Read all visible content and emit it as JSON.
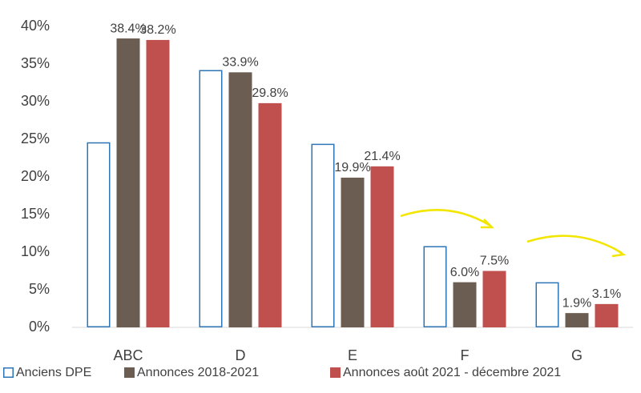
{
  "chart_data": {
    "type": "bar",
    "categories": [
      "ABC",
      "D",
      "E",
      "F",
      "G"
    ],
    "series": [
      {
        "name": "Anciens DPE",
        "color": "#2e75b6",
        "outline": true,
        "values": [
          24.6,
          34.2,
          24.4,
          10.8,
          6.0
        ]
      },
      {
        "name": "Annonces 2018-2021",
        "color": "#6b5d52",
        "values": [
          38.4,
          33.9,
          19.9,
          6.0,
          1.9
        ],
        "value_labels": [
          "38.4%",
          "33.9%",
          "19.9%",
          "6.0%",
          "1.9%"
        ]
      },
      {
        "name": "Annonces août 2021 - décembre 2021",
        "color": "#c0504d",
        "values": [
          38.2,
          29.8,
          21.4,
          7.5,
          3.1
        ],
        "value_labels": [
          "38.2%",
          "29.8%",
          "21.4%",
          "7.5%",
          "3.1%"
        ]
      }
    ],
    "ylim": [
      0,
      40
    ],
    "yticks": [
      {
        "value": 0,
        "label": "0%"
      },
      {
        "value": 5,
        "label": "5%"
      },
      {
        "value": 10,
        "label": "10%"
      },
      {
        "value": 15,
        "label": "15%"
      },
      {
        "value": 20,
        "label": "20%"
      },
      {
        "value": 25,
        "label": "25%"
      },
      {
        "value": 30,
        "label": "30%"
      },
      {
        "value": 35,
        "label": "35%"
      },
      {
        "value": 40,
        "label": "40%"
      }
    ],
    "grid": false,
    "legend": "bottom"
  }
}
